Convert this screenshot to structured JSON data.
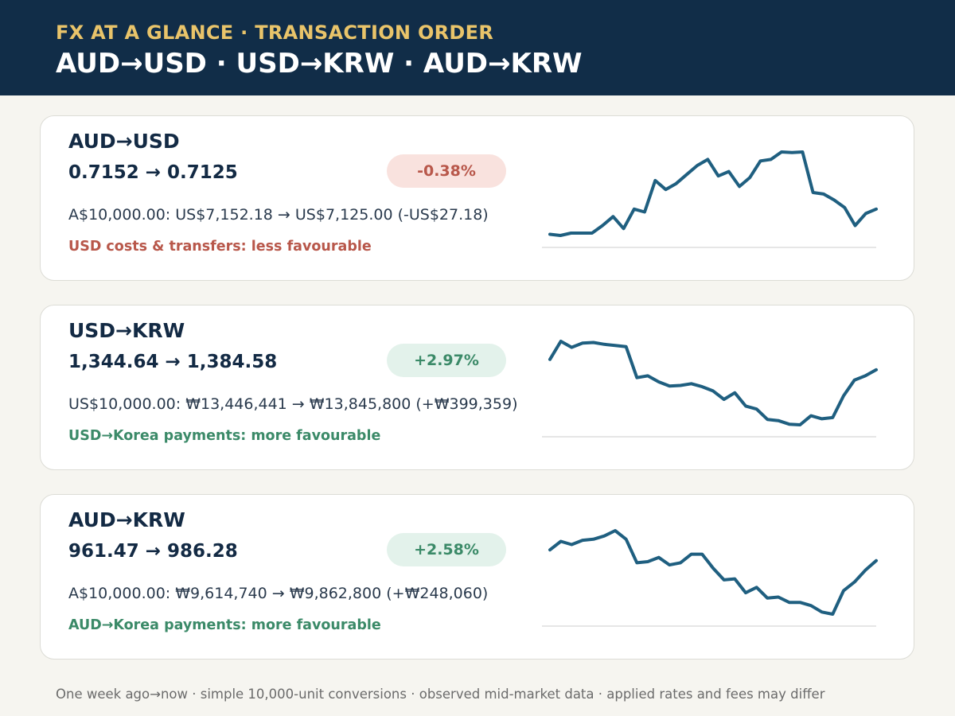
{
  "header": {
    "kicker": "FX AT A GLANCE · TRANSACTION ORDER",
    "headline": "AUD→USD · USD→KRW · AUD→KRW"
  },
  "cards": [
    {
      "pair": "AUD→USD",
      "rates": "0.7152 → 0.7125",
      "change": "-0.38%",
      "direction": "neg",
      "conversion": "A$10,000.00: US$7,152.18 → US$7,125.00 (-US$27.18)",
      "note": "USD costs & transfers: less favourable",
      "chart_data": {
        "type": "line",
        "values": [
          0.6,
          0.2,
          1.0,
          1.0,
          1.0,
          3.5,
          6.5,
          2.5,
          9.0,
          8.0,
          18.5,
          15.5,
          17.5,
          20.5,
          23.5,
          25.5,
          20.0,
          21.5,
          16.5,
          19.5,
          25.0,
          25.5,
          28.0,
          27.8,
          28.0,
          14.5,
          14.0,
          12.0,
          9.5,
          3.5,
          7.5,
          9.0
        ]
      }
    },
    {
      "pair": "USD→KRW",
      "rates": "1,344.64 → 1,384.58",
      "change": "+2.97%",
      "direction": "pos",
      "conversion": "US$10,000.00: ₩13,446,441 → ₩13,845,800 (+₩399,359)",
      "note": "USD→Korea payments: more favourable",
      "chart_data": {
        "type": "line",
        "values": [
          1381.5,
          1384.5,
          1383.5,
          1384.2,
          1384.3,
          1384.0,
          1383.8,
          1383.6,
          1378.5,
          1378.8,
          1377.8,
          1377.1,
          1377.2,
          1377.5,
          1377.0,
          1376.3,
          1374.9,
          1376.0,
          1373.8,
          1373.3,
          1371.6,
          1371.4,
          1370.8,
          1370.7,
          1372.2,
          1371.7,
          1371.9,
          1375.5,
          1378.1,
          1378.8,
          1379.8
        ]
      }
    },
    {
      "pair": "AUD→KRW",
      "rates": "961.47 → 986.28",
      "change": "+2.58%",
      "direction": "pos",
      "conversion": "A$10,000.00: ₩9,614,740 → ₩9,862,800 (+₩248,060)",
      "note": "AUD→Korea payments: more favourable",
      "chart_data": {
        "type": "line",
        "values": [
          22.5,
          26.5,
          25.0,
          27.0,
          27.5,
          29.0,
          31.5,
          27.5,
          16.5,
          17.0,
          19.0,
          15.5,
          16.5,
          20.5,
          20.5,
          14.0,
          8.5,
          9.0,
          2.5,
          5.0,
          0.0,
          0.5,
          -2.0,
          -2.0,
          -3.5,
          -6.5,
          -7.5,
          3.5,
          7.5,
          13.0,
          17.5
        ]
      }
    }
  ],
  "footer": "One week ago→now · simple 10,000-unit conversions · observed mid-market data · applied rates and fees may differ",
  "colors": {
    "header_bg": "#112d48",
    "kicker": "#e9c46a",
    "line": "#1f5f80",
    "negative": "#b8574a",
    "positive": "#3b8a68"
  }
}
